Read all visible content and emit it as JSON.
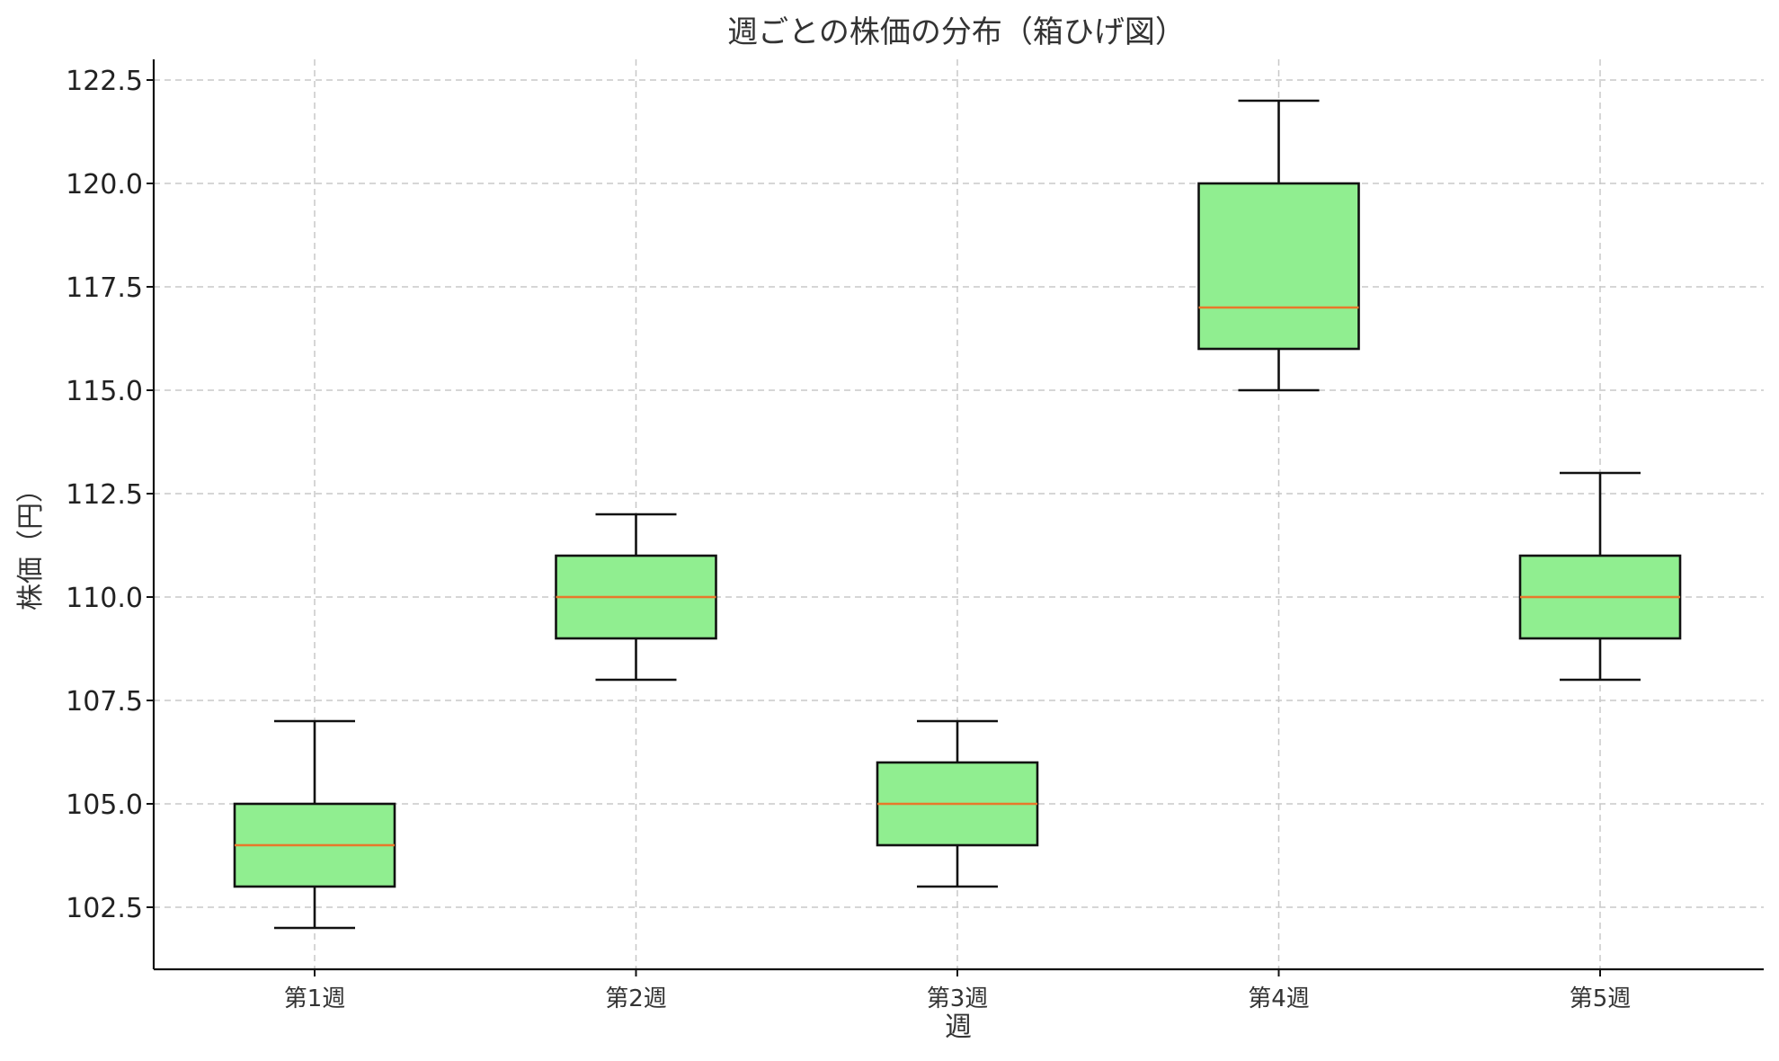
{
  "chart_data": {
    "type": "box",
    "title": "週ごとの株価の分布（箱ひげ図）",
    "xlabel": "週",
    "ylabel": "株価（円）",
    "categories": [
      "第1週",
      "第2週",
      "第3週",
      "第4週",
      "第5週"
    ],
    "boxes": [
      {
        "label": "第1週",
        "min": 102,
        "q1": 103,
        "median": 104,
        "q3": 105,
        "max": 107
      },
      {
        "label": "第2週",
        "min": 108,
        "q1": 109,
        "median": 110,
        "q3": 111,
        "max": 112
      },
      {
        "label": "第3週",
        "min": 103,
        "q1": 104,
        "median": 105,
        "q3": 106,
        "max": 107
      },
      {
        "label": "第4週",
        "min": 115,
        "q1": 116,
        "median": 117,
        "q3": 120,
        "max": 122
      },
      {
        "label": "第5週",
        "min": 108,
        "q1": 109,
        "median": 110,
        "q3": 111,
        "max": 113
      }
    ],
    "ylim": [
      101,
      123
    ],
    "yticks": [
      "102.5",
      "105.0",
      "107.5",
      "110.0",
      "112.5",
      "115.0",
      "117.5",
      "120.0",
      "122.5"
    ],
    "grid": true,
    "colors": {
      "box_fill": "#90ee90",
      "box_edge": "#111111",
      "median": "#e8782a",
      "grid": "#c8c8c8"
    }
  }
}
